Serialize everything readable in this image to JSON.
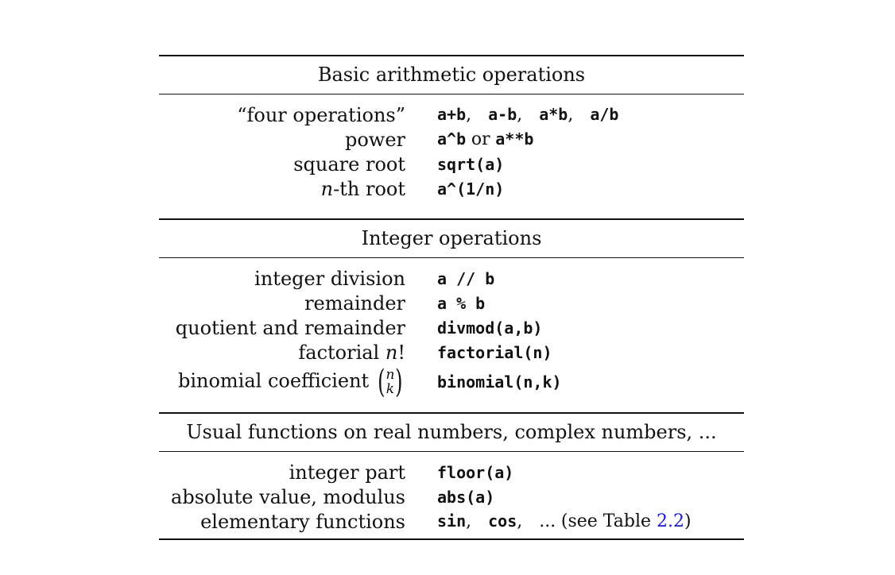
{
  "sections": [
    {
      "title": "Basic arithmetic operations",
      "rows": [
        {
          "label": "“four operations”",
          "codes": [
            "a+b",
            "a-b",
            "a*b",
            "a/b"
          ]
        },
        {
          "label": "power",
          "code1": "a^b",
          "connector": "or",
          "code2": "a**b"
        },
        {
          "label": "square root",
          "code": "sqrt(a)"
        },
        {
          "label_var": "n",
          "label_rest": "-th root",
          "code": "a^(1/n)"
        }
      ]
    },
    {
      "title": "Integer operations",
      "rows": [
        {
          "label": "integer division",
          "code": "a // b"
        },
        {
          "label": "remainder",
          "code": "a % b"
        },
        {
          "label": "quotient and remainder",
          "code": "divmod(a,b)"
        },
        {
          "label_text": "factorial ",
          "label_var": "n",
          "label_suffix": "!",
          "code": "factorial(n)"
        },
        {
          "label_text": "binomial coefficient",
          "binom_top": "n",
          "binom_bottom": "k",
          "code": "binomial(n,k)"
        }
      ]
    },
    {
      "title": "Usual functions on real numbers, complex numbers, ...",
      "rows": [
        {
          "label": "integer part",
          "code": "floor(a)"
        },
        {
          "label": "absolute value, modulus",
          "code": "abs(a)"
        },
        {
          "label": "elementary functions",
          "codes": [
            "sin",
            "cos"
          ],
          "ellipsis": "...",
          "ref_prefix": "(see Table ",
          "ref_link": "2.2",
          "ref_suffix": ")"
        }
      ]
    }
  ]
}
